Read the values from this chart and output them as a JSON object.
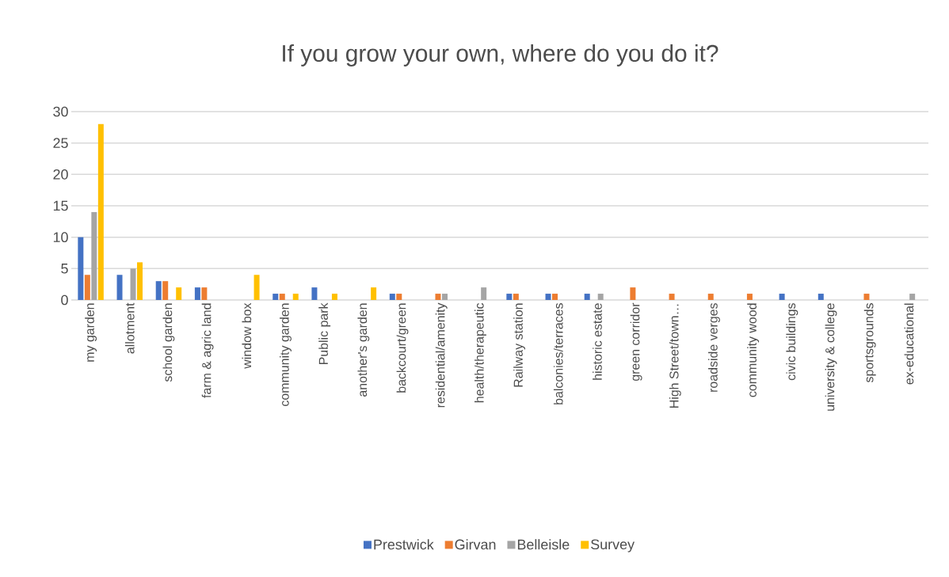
{
  "chart_data": {
    "type": "bar",
    "title": "If you grow your own, where do you do it?",
    "categories": [
      "my garden",
      "allotment",
      "school garden",
      "farm & agric land",
      "window box",
      "community garden",
      "Public park",
      "another's garden",
      "backcourt/green",
      "residential/amenity",
      "health/therapeutic",
      "Railway station",
      "balconies/terraces",
      "historic estate",
      "green corridor",
      "High Street/town…",
      "roadside verges",
      "community wood",
      "civic buildings",
      "university & college",
      "sportsgrounds",
      "ex-educational"
    ],
    "series": [
      {
        "name": "Prestwick",
        "color": "#4472c4",
        "values": [
          10,
          4,
          3,
          2,
          0,
          1,
          2,
          0,
          1,
          0,
          0,
          1,
          1,
          1,
          0,
          0,
          0,
          0,
          1,
          1,
          0,
          0
        ]
      },
      {
        "name": "Girvan",
        "color": "#ed7d31",
        "values": [
          4,
          0,
          3,
          2,
          0,
          1,
          0,
          0,
          1,
          1,
          0,
          1,
          1,
          0,
          2,
          1,
          1,
          1,
          0,
          0,
          1,
          0
        ]
      },
      {
        "name": "Belleisle",
        "color": "#a5a5a5",
        "values": [
          14,
          5,
          0,
          0,
          0,
          0,
          0,
          0,
          0,
          1,
          2,
          0,
          0,
          1,
          0,
          0,
          0,
          0,
          0,
          0,
          0,
          1
        ]
      },
      {
        "name": "Survey",
        "color": "#ffc000",
        "values": [
          28,
          6,
          2,
          0,
          4,
          1,
          1,
          2,
          0,
          0,
          0,
          0,
          0,
          0,
          0,
          0,
          0,
          0,
          0,
          0,
          0,
          0
        ]
      }
    ],
    "ylim": [
      0,
      30
    ],
    "yticks": [
      0,
      5,
      10,
      15,
      20,
      25,
      30
    ],
    "grid": "y",
    "legend": "bottom"
  }
}
